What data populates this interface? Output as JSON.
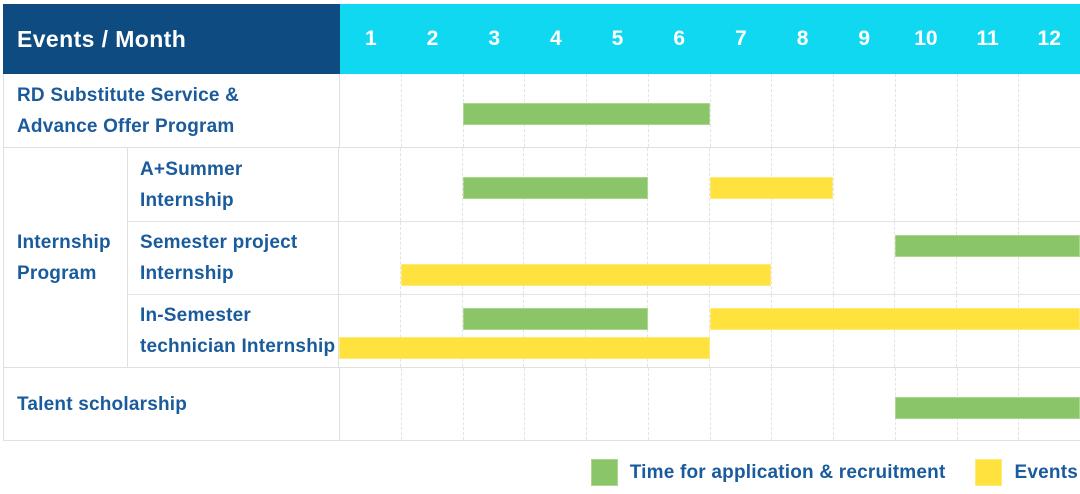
{
  "header": {
    "title": "Events / Month",
    "months": [
      "1",
      "2",
      "3",
      "4",
      "5",
      "6",
      "7",
      "8",
      "9",
      "10",
      "11",
      "12"
    ]
  },
  "colors": {
    "header_bg": "#0D4B80",
    "months_bg": "#0FD8F0",
    "label_text": "#1A5B9C",
    "application_bar": "#8BC56A",
    "application_bar_border": "#A9D78D",
    "event_bar": "#FFE23E",
    "event_bar_border": "#FFEA75",
    "grid_line": "#E3E3E3",
    "row_line": "#E0E0E0",
    "sub_row_line": "#E3E3E3"
  },
  "group": {
    "label_lines": [
      "Internship",
      "Program"
    ]
  },
  "rows": [
    {
      "id": "rd-substitute",
      "in_group": false,
      "label_lines": [
        "RD Substitute Service &",
        "Advance Offer Program"
      ],
      "bars": [
        {
          "type": "application",
          "start": 3,
          "end": 6,
          "lane": "single"
        }
      ]
    },
    {
      "id": "a-plus-summer-internship",
      "in_group": true,
      "label_lines": [
        "A+Summer",
        "Internship"
      ],
      "bars": [
        {
          "type": "application",
          "start": 3,
          "end": 5,
          "lane": "single"
        },
        {
          "type": "event",
          "start": 7,
          "end": 8,
          "lane": "single"
        }
      ]
    },
    {
      "id": "semester-project-internship",
      "in_group": true,
      "label_lines": [
        "Semester project",
        "Internship"
      ],
      "bars": [
        {
          "type": "application",
          "start": 10,
          "end": 12,
          "lane": "top"
        },
        {
          "type": "event",
          "start": 2,
          "end": 7,
          "lane": "bottom"
        }
      ]
    },
    {
      "id": "in-semester-technician-internship",
      "in_group": true,
      "label_lines": [
        "In-Semester",
        "technician Internship"
      ],
      "bars": [
        {
          "type": "application",
          "start": 3,
          "end": 5,
          "lane": "top"
        },
        {
          "type": "event",
          "start": 7,
          "end": 12,
          "lane": "top"
        },
        {
          "type": "event",
          "start": 1,
          "end": 6,
          "lane": "bottom"
        }
      ]
    },
    {
      "id": "talent-scholarship",
      "in_group": false,
      "label_lines": [
        "Talent scholarship"
      ],
      "bars": [
        {
          "type": "application",
          "start": 10,
          "end": 12,
          "lane": "single"
        }
      ]
    }
  ],
  "legend": {
    "items": [
      {
        "key": "application",
        "label": "Time for application & recruitment"
      },
      {
        "key": "event",
        "label": "Events"
      }
    ]
  },
  "chart_data": {
    "type": "gantt",
    "title": "Events / Month",
    "x_axis": {
      "unit": "month",
      "ticks": [
        1,
        2,
        3,
        4,
        5,
        6,
        7,
        8,
        9,
        10,
        11,
        12
      ],
      "range": [
        1,
        12
      ]
    },
    "legend": [
      {
        "name": "Time for application & recruitment",
        "color": "#8BC56A"
      },
      {
        "name": "Events",
        "color": "#FFE23E"
      }
    ],
    "tasks": [
      {
        "row": "RD Substitute Service & Advance Offer Program",
        "group": null,
        "spans": [
          {
            "series": "Time for application & recruitment",
            "start_month": 3,
            "end_month": 6
          }
        ]
      },
      {
        "row": "A+Summer Internship",
        "group": "Internship Program",
        "spans": [
          {
            "series": "Time for application & recruitment",
            "start_month": 3,
            "end_month": 5
          },
          {
            "series": "Events",
            "start_month": 7,
            "end_month": 8
          }
        ]
      },
      {
        "row": "Semester project Internship",
        "group": "Internship Program",
        "spans": [
          {
            "series": "Time for application & recruitment",
            "start_month": 10,
            "end_month": 12
          },
          {
            "series": "Events",
            "start_month": 2,
            "end_month": 7
          }
        ]
      },
      {
        "row": "In-Semester technician Internship",
        "group": "Internship Program",
        "spans": [
          {
            "series": "Time for application & recruitment",
            "start_month": 3,
            "end_month": 5
          },
          {
            "series": "Events",
            "start_month": 7,
            "end_month": 12
          },
          {
            "series": "Events",
            "start_month": 1,
            "end_month": 6
          }
        ]
      },
      {
        "row": "Talent scholarship",
        "group": null,
        "spans": [
          {
            "series": "Time for application & recruitment",
            "start_month": 10,
            "end_month": 12
          }
        ]
      }
    ]
  }
}
